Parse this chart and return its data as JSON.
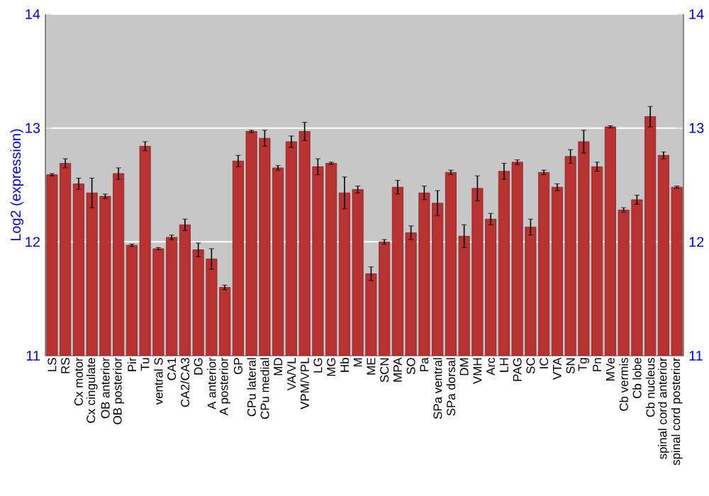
{
  "chart_data": {
    "type": "bar",
    "ylabel": "Log2 (expression)",
    "categories": [
      "LS",
      "RS",
      "Cx motor",
      "Cx cingulate",
      "OB anterior",
      "OB posterior",
      "Pir",
      "Tu",
      "ventral S",
      "CA1",
      "CA2/CA3",
      "DG",
      "A anterior",
      "A posterior",
      "GP",
      "CPu lateral",
      "CPu medial",
      "MD",
      "VA/VL",
      "VPM/VPL",
      "LG",
      "MG",
      "Hb",
      "M",
      "ME",
      "SCN",
      "MPA",
      "SO",
      "Pa",
      "SPa ventral",
      "SPa dorsal",
      "DM",
      "VMH",
      "Arc",
      "LH",
      "PAG",
      "SC",
      "IC",
      "VTA",
      "SN",
      "Tg",
      "Pn",
      "MVe",
      "Cb vermis",
      "Cb lobe",
      "Cb nucleus",
      "spinal cord anterior",
      "spinal cord posterior"
    ],
    "values": [
      12.59,
      12.69,
      12.51,
      12.43,
      12.4,
      12.6,
      11.97,
      12.84,
      11.94,
      12.04,
      12.15,
      11.93,
      11.85,
      11.6,
      12.71,
      12.97,
      12.91,
      12.65,
      12.88,
      12.97,
      12.66,
      12.69,
      12.43,
      12.46,
      11.72,
      12.0,
      12.48,
      12.08,
      12.43,
      12.34,
      12.61,
      12.05,
      12.47,
      12.2,
      12.62,
      12.7,
      12.13,
      12.61,
      12.48,
      12.75,
      12.88,
      12.66,
      13.01,
      12.28,
      12.37,
      13.1,
      12.76,
      12.48
    ],
    "errors": [
      0.01,
      0.04,
      0.05,
      0.13,
      0.02,
      0.05,
      0.01,
      0.04,
      0.01,
      0.02,
      0.05,
      0.06,
      0.09,
      0.02,
      0.05,
      0.01,
      0.07,
      0.02,
      0.05,
      0.08,
      0.07,
      0.01,
      0.14,
      0.03,
      0.06,
      0.02,
      0.06,
      0.06,
      0.06,
      0.11,
      0.02,
      0.1,
      0.11,
      0.05,
      0.07,
      0.02,
      0.07,
      0.02,
      0.03,
      0.06,
      0.1,
      0.04,
      0.01,
      0.02,
      0.04,
      0.09,
      0.03,
      0.01
    ],
    "color": "#b83232",
    "ylim": [
      11,
      14
    ],
    "yticks": [
      11,
      12,
      13,
      14
    ],
    "y2lim": [
      11,
      14
    ],
    "y2ticks": [
      11,
      12,
      13,
      14
    ],
    "grid": "y"
  }
}
